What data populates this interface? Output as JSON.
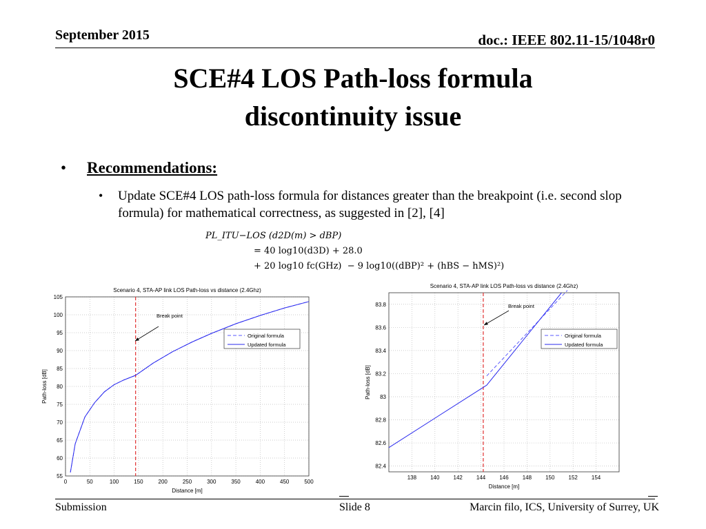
{
  "header": {
    "date": "September 2015",
    "doc": "doc.: IEEE 802.11-15/1048r0"
  },
  "title": {
    "line1": "SCE#4 LOS Path-loss formula",
    "line2": "discontinuity issue"
  },
  "bullets": {
    "main_marker": "•",
    "main": "Recommendations:",
    "sub_marker": "•",
    "sub": "Update SCE#4 LOS path-loss formula for distances greater than the breakpoint (i.e. second slop formula) for mathematical correctness, as suggested in [2], [4]"
  },
  "formula": {
    "line1": "PL_ITU−LOS (d2D(m) > dBP)",
    "line2": "= 40 log10(d3D) + 28.0",
    "line3": "+ 20 log10 fc(GHz)  − 9 log10((dBP)² + (hBS − hMS)²)"
  },
  "footer": {
    "left": "Submission",
    "center": "Slide 8",
    "right": "Marcin filo, ICS, University of Surrey, UK"
  },
  "colors": {
    "original": "#5a5aff",
    "updated": "#2a2aee",
    "breakpoint": "#e03030"
  },
  "chart_data": [
    {
      "type": "line",
      "title": "Scenario 4, STA-AP link LOS Path-loss vs distance (2.4Ghz)",
      "xlabel": "Distance [m]",
      "ylabel": "Path-loss [dB]",
      "xlim": [
        0,
        500
      ],
      "ylim": [
        55,
        105
      ],
      "xticks": [
        0,
        50,
        100,
        150,
        200,
        250,
        300,
        350,
        400,
        450,
        500
      ],
      "yticks": [
        55,
        60,
        65,
        70,
        75,
        80,
        85,
        90,
        95,
        100,
        105
      ],
      "grid": true,
      "legend_position": "right",
      "annotation": "Break point",
      "breakpoint_x": 144,
      "series": [
        {
          "name": "Original formula",
          "style": "dashed",
          "x": [
            10,
            20,
            40,
            60,
            80,
            100,
            120,
            144,
            180,
            220,
            260,
            300,
            350,
            400,
            450,
            500
          ],
          "y": [
            56,
            64,
            71.5,
            75.5,
            78.5,
            80.5,
            81.8,
            83.1,
            86.5,
            89.7,
            92.4,
            94.8,
            97.5,
            99.8,
            101.9,
            103.7
          ]
        },
        {
          "name": "Updated formula",
          "style": "solid",
          "x": [
            10,
            20,
            40,
            60,
            80,
            100,
            120,
            144,
            180,
            220,
            260,
            300,
            350,
            400,
            450,
            500
          ],
          "y": [
            56,
            64,
            71.5,
            75.5,
            78.5,
            80.5,
            81.8,
            83.1,
            86.5,
            89.7,
            92.4,
            94.8,
            97.5,
            99.8,
            101.9,
            103.7
          ]
        }
      ]
    },
    {
      "type": "line",
      "title": "Scenario 4, STA-AP link LOS Path-loss vs distance (2.4Ghz)",
      "xlabel": "Distance [m]",
      "ylabel": "Path-loss [dB]",
      "xlim": [
        136,
        156
      ],
      "ylim": [
        82.35,
        83.9
      ],
      "xticks": [
        138,
        140,
        142,
        144,
        146,
        148,
        150,
        152,
        154
      ],
      "yticks": [
        82.4,
        82.6,
        82.8,
        83,
        83.2,
        83.4,
        83.6,
        83.8
      ],
      "grid": true,
      "legend_position": "right",
      "annotation": "Break point",
      "breakpoint_x": 144.2,
      "series": [
        {
          "name": "Original formula",
          "style": "dashed",
          "x": [
            144.5,
            151.5
          ],
          "y": [
            83.18,
            83.92
          ]
        },
        {
          "name": "Updated formula",
          "style": "solid",
          "x": [
            136,
            144.5,
            151
          ],
          "y": [
            82.56,
            83.1,
            83.9
          ]
        }
      ]
    }
  ]
}
